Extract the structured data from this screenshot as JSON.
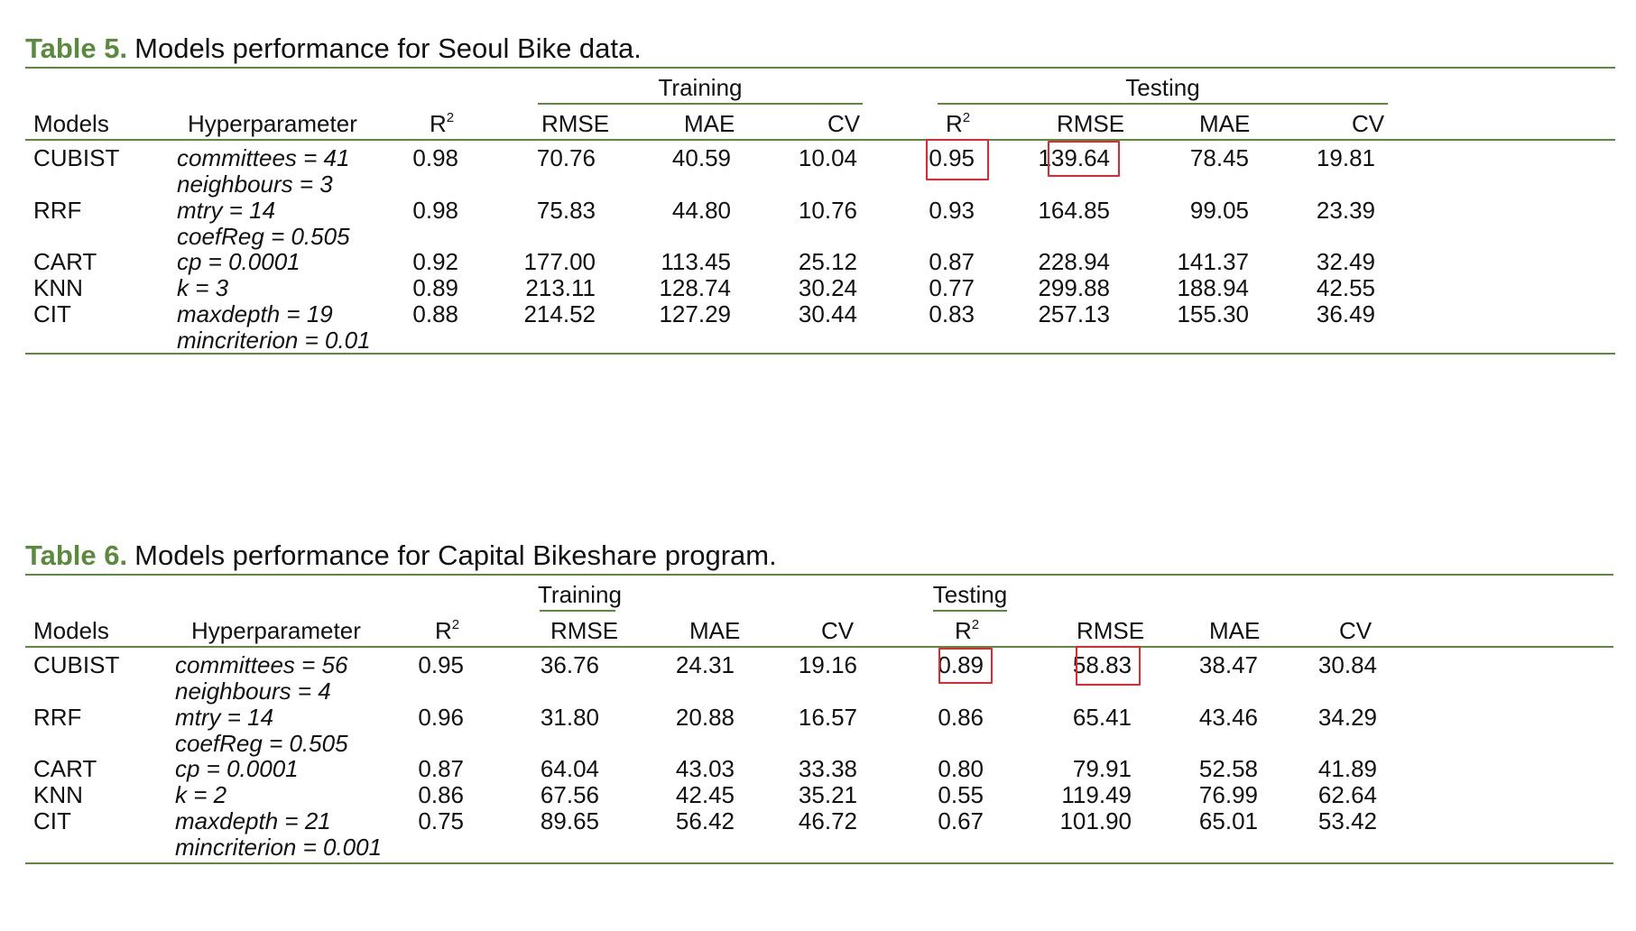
{
  "tables": [
    {
      "id": "t5",
      "caption_num": "Table 5.",
      "caption_text": "Models performance for Seoul Bike data.",
      "group_training": "Training",
      "group_testing": "Testing",
      "headers": [
        "Models",
        "Hyperparameter",
        "R",
        "RMSE",
        "MAE",
        "CV",
        "R",
        "RMSE",
        "MAE",
        "CV"
      ],
      "r_superscript": "2",
      "rows": [
        {
          "model": "CUBIST",
          "hp": [
            "committees = 41",
            "neighbours = 3"
          ],
          "vals": [
            "0.98",
            "70.76",
            "40.59",
            "10.04",
            "0.95",
            "139.64",
            "78.45",
            "19.81"
          ]
        },
        {
          "model": "RRF",
          "hp": [
            "mtry = 14",
            "coefReg = 0.505"
          ],
          "vals": [
            "0.98",
            "75.83",
            "44.80",
            "10.76",
            "0.93",
            "164.85",
            "99.05",
            "23.39"
          ]
        },
        {
          "model": "CART",
          "hp": [
            "cp = 0.0001"
          ],
          "vals": [
            "0.92",
            "177.00",
            "113.45",
            "25.12",
            "0.87",
            "228.94",
            "141.37",
            "32.49"
          ]
        },
        {
          "model": "KNN",
          "hp": [
            "k = 3"
          ],
          "vals": [
            "0.89",
            "213.11",
            "128.74",
            "30.24",
            "0.77",
            "299.88",
            "188.94",
            "42.55"
          ]
        },
        {
          "model": "CIT",
          "hp": [
            "maxdepth = 19",
            "mincriterion = 0.01"
          ],
          "vals": [
            "0.88",
            "214.52",
            "127.29",
            "30.44",
            "0.83",
            "257.13",
            "155.30",
            "36.49"
          ]
        }
      ],
      "highlighted": [
        "0.95",
        "139.64"
      ],
      "highlight_color": "#e0282e",
      "accent_color": "#5a8a3c"
    },
    {
      "id": "t6",
      "caption_num": "Table 6.",
      "caption_text": "Models performance for Capital Bikeshare program.",
      "group_training": "Training",
      "group_testing": "Testing",
      "headers": [
        "Models",
        "Hyperparameter",
        "R",
        "RMSE",
        "MAE",
        "CV",
        "R",
        "RMSE",
        "MAE",
        "CV"
      ],
      "r_superscript": "2",
      "rows": [
        {
          "model": "CUBIST",
          "hp": [
            "committees = 56",
            "neighbours = 4"
          ],
          "vals": [
            "0.95",
            "36.76",
            "24.31",
            "19.16",
            "0.89",
            "58.83",
            "38.47",
            "30.84"
          ]
        },
        {
          "model": "RRF",
          "hp": [
            "mtry = 14",
            "coefReg = 0.505"
          ],
          "vals": [
            "0.96",
            "31.80",
            "20.88",
            "16.57",
            "0.86",
            "65.41",
            "43.46",
            "34.29"
          ]
        },
        {
          "model": "CART",
          "hp": [
            "cp = 0.0001"
          ],
          "vals": [
            "0.87",
            "64.04",
            "43.03",
            "33.38",
            "0.80",
            "79.91",
            "52.58",
            "41.89"
          ]
        },
        {
          "model": "KNN",
          "hp": [
            "k = 2"
          ],
          "vals": [
            "0.86",
            "67.56",
            "42.45",
            "35.21",
            "0.55",
            "119.49",
            "76.99",
            "62.64"
          ]
        },
        {
          "model": "CIT",
          "hp": [
            "maxdepth = 21",
            "mincriterion = 0.001"
          ],
          "vals": [
            "0.75",
            "89.65",
            "56.42",
            "46.72",
            "0.67",
            "101.90",
            "65.01",
            "53.42"
          ]
        }
      ],
      "highlighted": [
        "0.89",
        "58.83"
      ],
      "highlight_color": "#e0282e",
      "accent_color": "#5a8a3c"
    }
  ]
}
